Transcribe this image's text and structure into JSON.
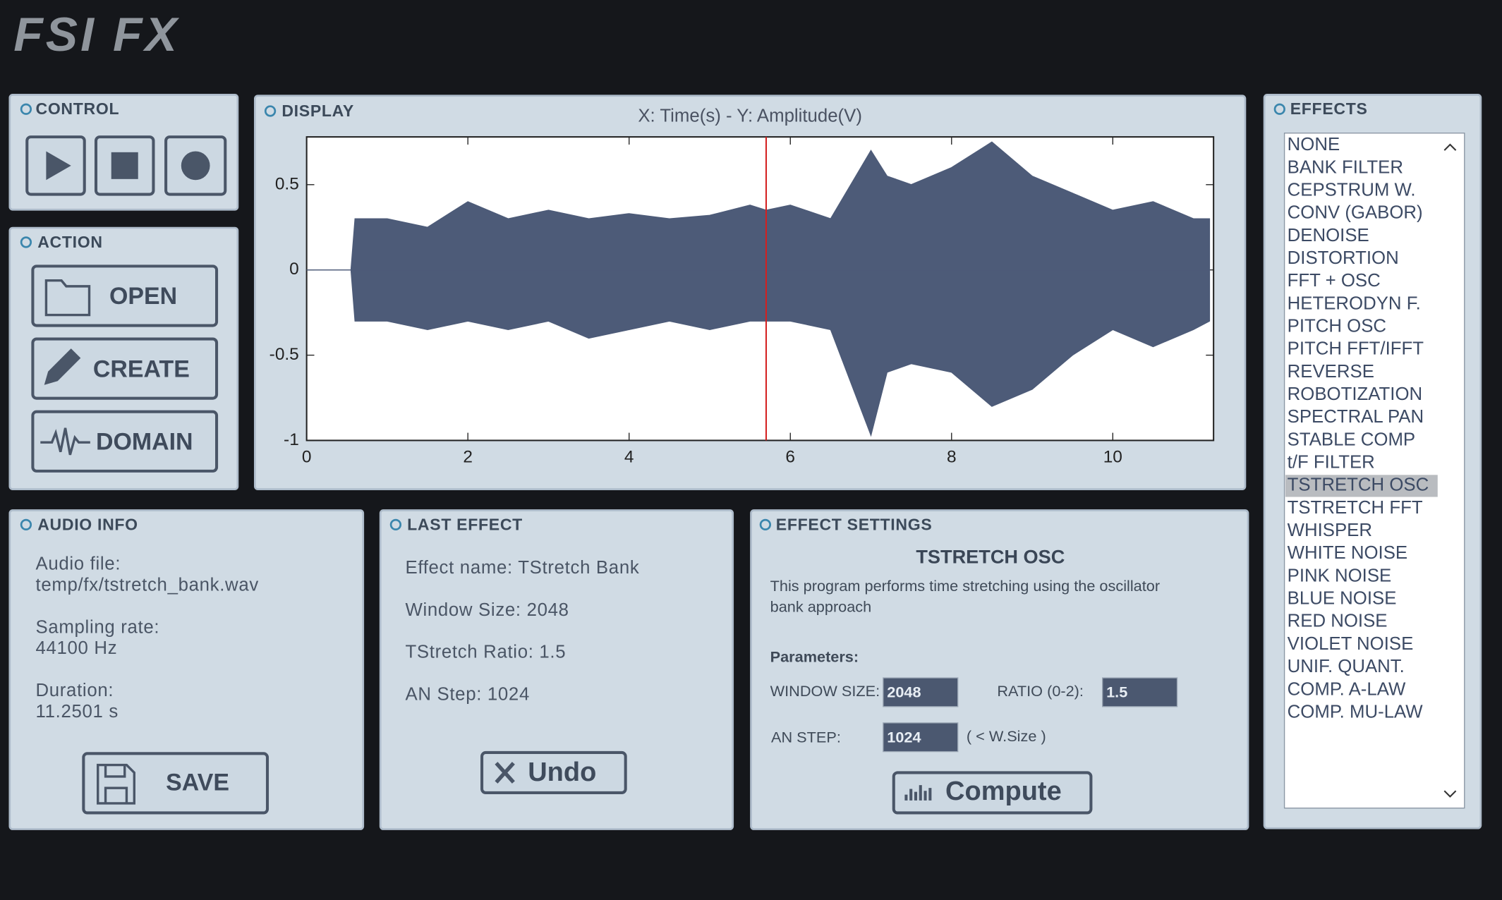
{
  "header": {
    "logo": "FSI FX"
  },
  "control": {
    "title": "CONTROL"
  },
  "action": {
    "title": "ACTION",
    "buttons": [
      "OPEN",
      "CREATE",
      "DOMAIN"
    ]
  },
  "display": {
    "title": "DISPLAY",
    "chart": {
      "type": "area",
      "axis_title": "X: Time(s) - Y: Amplitude(V)",
      "xlim": [
        0,
        11.25
      ],
      "ylim": [
        -1,
        0.78
      ],
      "xticks": [
        0,
        2,
        4,
        6,
        8,
        10
      ],
      "yticks": [
        -1,
        {
          "value": -0.5,
          "label": "-0.5"
        },
        0,
        {
          "value": 0.5,
          "label": "0.5"
        }
      ],
      "color": "#4d5b78",
      "cursor": 5.7,
      "cursor_color": "#d42020",
      "x": [
        0,
        0.55,
        0.6,
        1,
        1.5,
        2,
        2.5,
        3,
        3.5,
        4,
        4.5,
        5,
        5.5,
        5.7,
        6,
        6.5,
        7,
        7.2,
        7.5,
        8,
        8.5,
        9,
        9.5,
        10,
        10.5,
        11,
        11.2
      ],
      "upper": [
        0,
        0,
        0.3,
        0.3,
        0.25,
        0.4,
        0.3,
        0.35,
        0.3,
        0.33,
        0.3,
        0.32,
        0.38,
        0.35,
        0.38,
        0.3,
        0.7,
        0.55,
        0.5,
        0.6,
        0.75,
        0.55,
        0.45,
        0.35,
        0.4,
        0.3,
        0.3
      ],
      "lower": [
        0,
        0,
        -0.3,
        -0.3,
        -0.35,
        -0.3,
        -0.35,
        -0.3,
        -0.4,
        -0.35,
        -0.3,
        -0.35,
        -0.3,
        -0.3,
        -0.3,
        -0.35,
        -0.97,
        -0.6,
        -0.55,
        -0.6,
        -0.8,
        -0.7,
        -0.5,
        -0.35,
        -0.45,
        -0.35,
        -0.3
      ]
    }
  },
  "audio_info": {
    "title": "AUDIO INFO",
    "lines": [
      "Audio file:",
      "temp/fx/tstretch_bank.wav",
      "Sampling rate:",
      "44100 Hz",
      "Duration:",
      "11.2501 s"
    ],
    "button": "SAVE"
  },
  "last_effect": {
    "title": "LAST EFFECT",
    "lines": [
      "Effect name: TStretch Bank",
      "Window Size: 2048",
      "TStretch Ratio: 1.5",
      "AN Step: 1024"
    ],
    "button": "Undo"
  },
  "effect_settings": {
    "title": "EFFECT SETTINGS",
    "name": "TSTRETCH OSC",
    "description": [
      "This program performs time stretching using the oscillator",
      "bank approach"
    ],
    "parameters_label": "Parameters:",
    "window_size_label": "WINDOW SIZE:",
    "window_size": "2048",
    "ratio_label": "RATIO (0-2):",
    "ratio": "1.5",
    "an_step_label": "AN STEP:",
    "an_step": "1024",
    "an_step_hint": "( < W.Size )",
    "button": "Compute"
  },
  "effects": {
    "title": "EFFECTS",
    "selected": 15,
    "items": [
      "NONE",
      "BANK FILTER",
      "CEPSTRUM W.",
      "CONV (GABOR)",
      "DENOISE",
      "DISTORTION",
      "FFT + OSC",
      "HETERODYN F.",
      "PITCH OSC",
      "PITCH FFT/IFFT",
      "REVERSE",
      "ROBOTIZATION",
      "SPECTRAL PAN",
      "STABLE COMP",
      "t/F FILTER",
      "TSTRETCH OSC",
      "TSTRETCH FFT",
      "WHISPER",
      "WHITE NOISE",
      "PINK NOISE",
      "BLUE NOISE",
      "RED NOISE",
      "VIOLET NOISE",
      "UNIF. QUANT.",
      "COMP. A-LAW",
      "COMP. MU-LAW"
    ]
  }
}
